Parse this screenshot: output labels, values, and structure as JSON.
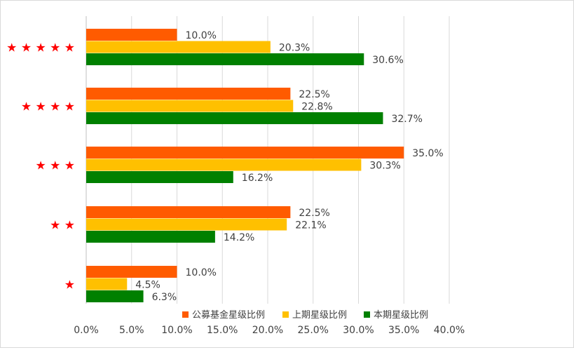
{
  "chart_data": {
    "type": "bar",
    "orientation": "horizontal",
    "categories": [
      "★",
      "★★",
      "★★★",
      "★★★★",
      "★★★★★"
    ],
    "category_labels": [
      "★",
      "★ ★",
      "★ ★ ★",
      "★ ★ ★ ★",
      "★ ★ ★ ★ ★"
    ],
    "series": [
      {
        "name": "公募基金星级比例",
        "color": "#FF5B00",
        "values": [
          10.0,
          22.5,
          35.0,
          22.5,
          10.0
        ]
      },
      {
        "name": "上期星级比例",
        "color": "#FFC000",
        "values": [
          4.5,
          22.1,
          30.3,
          22.8,
          20.3
        ]
      },
      {
        "name": "本期星级比例",
        "color": "#008000",
        "values": [
          6.3,
          14.2,
          16.2,
          32.7,
          30.6
        ]
      }
    ],
    "xlim": [
      0,
      40
    ],
    "x_ticks": [
      0,
      5,
      10,
      15,
      20,
      25,
      30,
      35,
      40
    ],
    "x_tick_labels": [
      "0.0%",
      "5.0%",
      "10.0%",
      "15.0%",
      "20.0%",
      "25.0%",
      "30.0%",
      "35.0%",
      "40.0%"
    ],
    "value_suffix": "%",
    "grid": "vertical",
    "legend_position": "bottom",
    "category_label_color": "#FF0000",
    "title": "",
    "xlabel": "",
    "ylabel": ""
  }
}
